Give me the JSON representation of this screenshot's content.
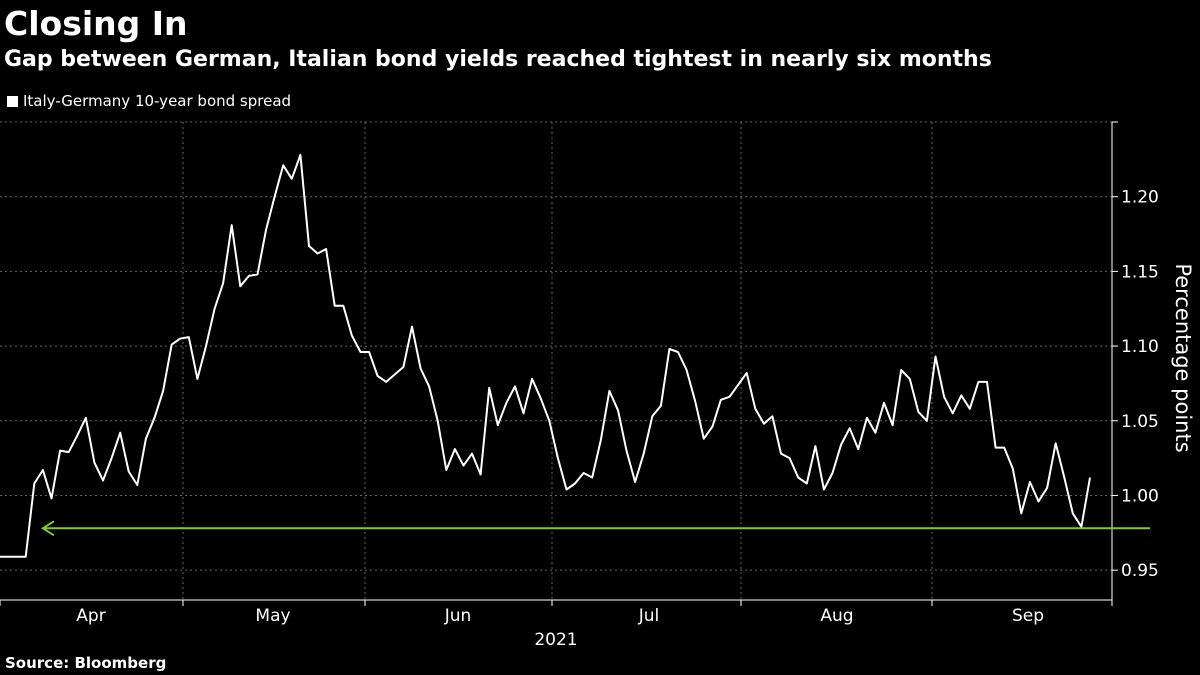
{
  "title": "Closing In",
  "subtitle": "Gap between German, Italian bond yields reached tightest in nearly six months",
  "source": "Source: Bloomberg",
  "colors": {
    "background": "#000000",
    "line": "#ffffff",
    "arrow": "#7ec83c",
    "grid": "#666666",
    "text": "#ffffff"
  },
  "chart_data": {
    "type": "line",
    "title": "Closing In",
    "subtitle": "Gap between German, Italian bond yields reached tightest in nearly six months",
    "ylabel": "Percentage points",
    "xlabel": "2021",
    "ylim": [
      0.93,
      1.25
    ],
    "yticks": [
      0.95,
      1.0,
      1.05,
      1.1,
      1.15,
      1.2
    ],
    "ytick_labels": [
      "0.95",
      "1.00",
      "1.05",
      "1.10",
      "1.15",
      "1.20"
    ],
    "x_month_labels": [
      "Apr",
      "May",
      "Jun",
      "Jul",
      "Aug",
      "Sep"
    ],
    "x_year_label": "2021",
    "legend": [
      "Italy-Germany 10-year bond spread"
    ],
    "legend_position": "top-left",
    "grid": true,
    "annotation": {
      "type": "arrow",
      "direction": "left",
      "level": 0.978,
      "from_index": 134,
      "to_index": 5,
      "color": "#7ec83c"
    },
    "series": [
      {
        "name": "Italy-Germany 10-year bond spread",
        "color": "#ffffff",
        "values": [
          0.959,
          0.959,
          0.959,
          0.959,
          1.008,
          1.017,
          0.998,
          1.03,
          1.029,
          1.04,
          1.052,
          1.022,
          1.01,
          1.025,
          1.042,
          1.016,
          1.007,
          1.038,
          1.052,
          1.07,
          1.101,
          1.105,
          1.106,
          1.078,
          1.1,
          1.125,
          1.142,
          1.181,
          1.14,
          1.147,
          1.148,
          1.178,
          1.2,
          1.221,
          1.212,
          1.228,
          1.167,
          1.162,
          1.165,
          1.127,
          1.127,
          1.107,
          1.096,
          1.096,
          1.08,
          1.076,
          1.081,
          1.086,
          1.113,
          1.085,
          1.073,
          1.05,
          1.017,
          1.031,
          1.02,
          1.028,
          1.014,
          1.072,
          1.047,
          1.062,
          1.073,
          1.055,
          1.078,
          1.065,
          1.05,
          1.025,
          1.004,
          1.008,
          1.015,
          1.012,
          1.037,
          1.07,
          1.057,
          1.03,
          1.009,
          1.028,
          1.053,
          1.06,
          1.098,
          1.096,
          1.084,
          1.063,
          1.038,
          1.046,
          1.064,
          1.066,
          1.074,
          1.082,
          1.058,
          1.048,
          1.053,
          1.028,
          1.025,
          1.012,
          1.008,
          1.033,
          1.004,
          1.015,
          1.034,
          1.045,
          1.031,
          1.052,
          1.042,
          1.062,
          1.047,
          1.084,
          1.078,
          1.056,
          1.05,
          1.093,
          1.066,
          1.055,
          1.067,
          1.058,
          1.076,
          1.076,
          1.032,
          1.032,
          1.018,
          0.988,
          1.009,
          0.996,
          1.005,
          1.035,
          1.012,
          0.988,
          0.979,
          1.012
        ]
      }
    ]
  }
}
